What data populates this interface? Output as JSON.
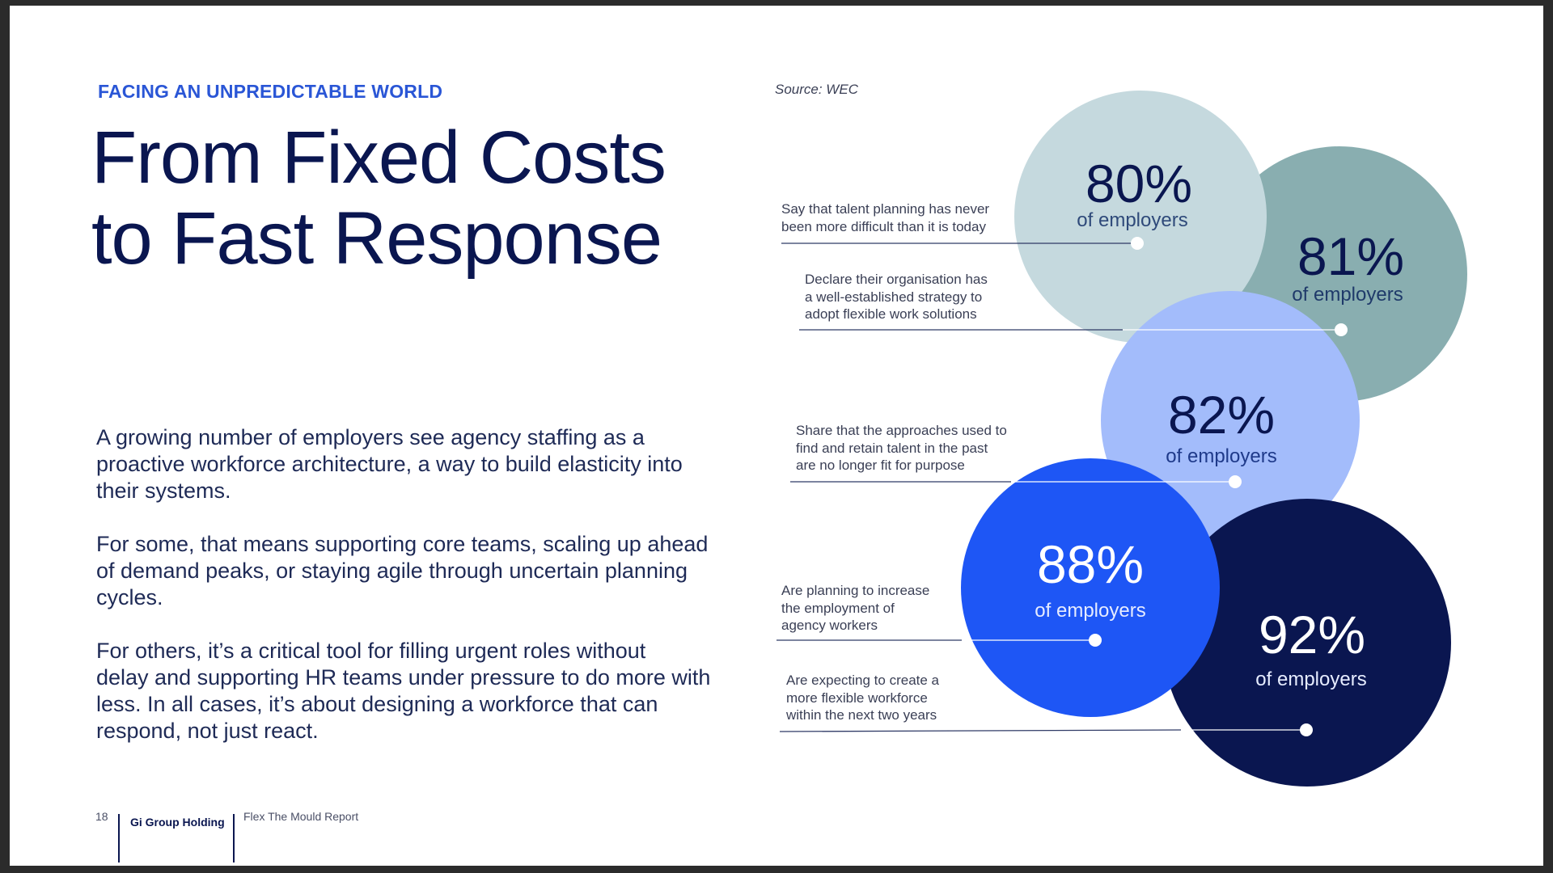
{
  "header": {
    "eyebrow": "FACING AN UNPREDICTABLE WORLD",
    "title_line1": "From Fixed Costs",
    "title_line2": "to Fast Response"
  },
  "body": {
    "p1": "A growing number of employers see agency staffing as a proactive workforce architecture, a way to build elasticity into their systems.",
    "p1_lines": [
      "A growing number of employers see agency staffing as a",
      "proactive workforce architecture, a way to build elasticity into",
      "their systems."
    ],
    "p2_lines": [
      "For some, that means supporting core teams, scaling up ahead",
      "of demand peaks, or staying agile through uncertain planning",
      "cycles."
    ],
    "p3_lines": [
      "For others, it’s a critical tool for filling urgent roles without",
      "delay and supporting HR teams under pressure to do more with",
      "less. In all cases, it’s about designing a workforce that can",
      "respond, not just react."
    ]
  },
  "source": "Source: WEC",
  "stats": [
    {
      "value": "80%",
      "label": "of employers",
      "caption_lines": [
        "Say that talent planning has never",
        "been more difficult than it is today"
      ],
      "color": "#c5d9de",
      "text_color": "#0a1650",
      "label_color": "#2f4a7a"
    },
    {
      "value": "81%",
      "label": "of employers",
      "caption_lines": [
        "Declare their organisation has",
        "a well-established strategy to",
        "adopt flexible work solutions"
      ],
      "color": "#89aeb0",
      "text_color": "#0a1650",
      "label_color": "#1f3a6a"
    },
    {
      "value": "82%",
      "label": "of employers",
      "caption_lines": [
        "Share that the approaches used to",
        "find and retain talent in the past",
        "are no longer fit for purpose"
      ],
      "color": "#a3bcfb",
      "text_color": "#0a1650",
      "label_color": "#1f3a8a"
    },
    {
      "value": "88%",
      "label": "of employers",
      "caption_lines": [
        "Are planning to increase",
        "the employment of",
        "agency workers"
      ],
      "color": "#1e56f5",
      "text_color": "#ffffff",
      "label_color": "#e6ecff"
    },
    {
      "value": "92%",
      "label": "of employers",
      "caption_lines": [
        "Are expecting to create a",
        "more flexible workforce",
        "within the next two years"
      ],
      "color": "#0a1650",
      "text_color": "#ffffff",
      "label_color": "#e6ecff"
    }
  ],
  "footer": {
    "page_number": "18",
    "brand": "Gi Group Holding",
    "report": "Flex The Mould Report"
  }
}
